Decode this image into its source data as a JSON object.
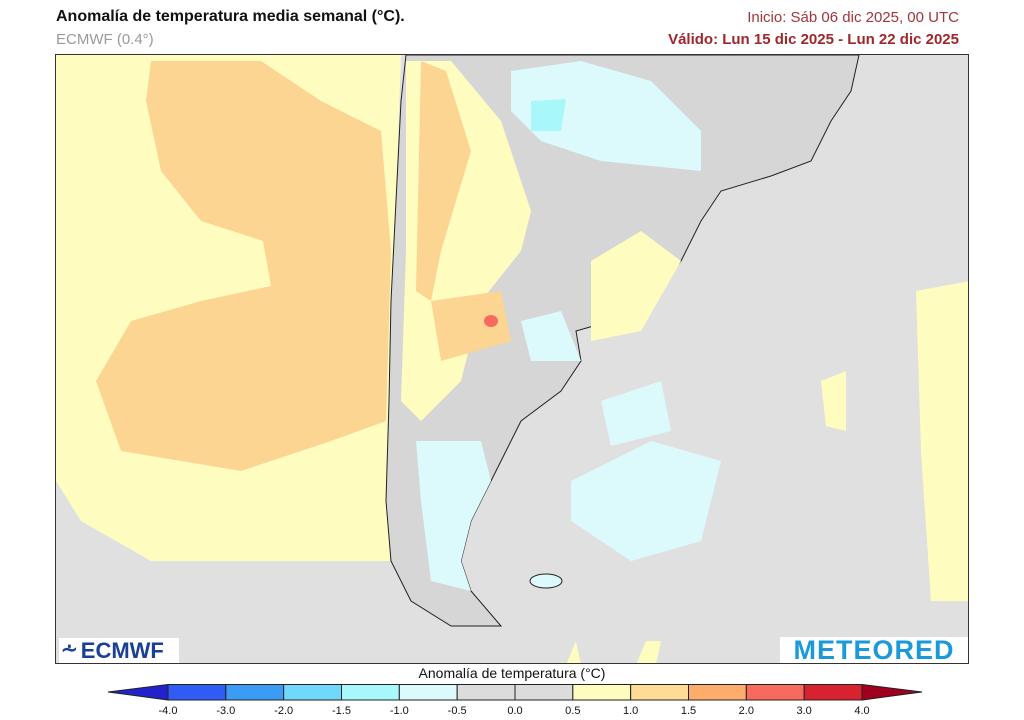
{
  "header": {
    "title": "Anomalía de temperatura media semanal (°C).",
    "model": "ECMWF (0.4°)",
    "init": "Inicio: Sáb 06 dic 2025, 00 UTC",
    "valid": "Válido: Lun 15 dic 2025 - Lun 22 dic 2025"
  },
  "logos": {
    "left": "ECMWF",
    "right": "METEORED"
  },
  "colorbar": {
    "title": "Anomalía de temperatura (°C)",
    "ticks": [
      "-4.0",
      "-3.0",
      "-2.0",
      "-1.5",
      "-1.0",
      "-0.5",
      "0.0",
      "0.5",
      "1.0",
      "1.5",
      "2.0",
      "3.0",
      "4.0"
    ],
    "colors": [
      "#2a2ee0",
      "#2f5cf5",
      "#3a9cf5",
      "#6fd8fb",
      "#a8f7fb",
      "#dcfafc",
      "#dcdcdc",
      "#dcdcdc",
      "#fffcc0",
      "#fedc96",
      "#fdac6c",
      "#f86a5e",
      "#d6232f"
    ],
    "under_color": "#2222cc",
    "over_color": "#a0001e"
  },
  "colors": {
    "neutral": "#e0e0e0",
    "land": "#d6d6d6"
  }
}
